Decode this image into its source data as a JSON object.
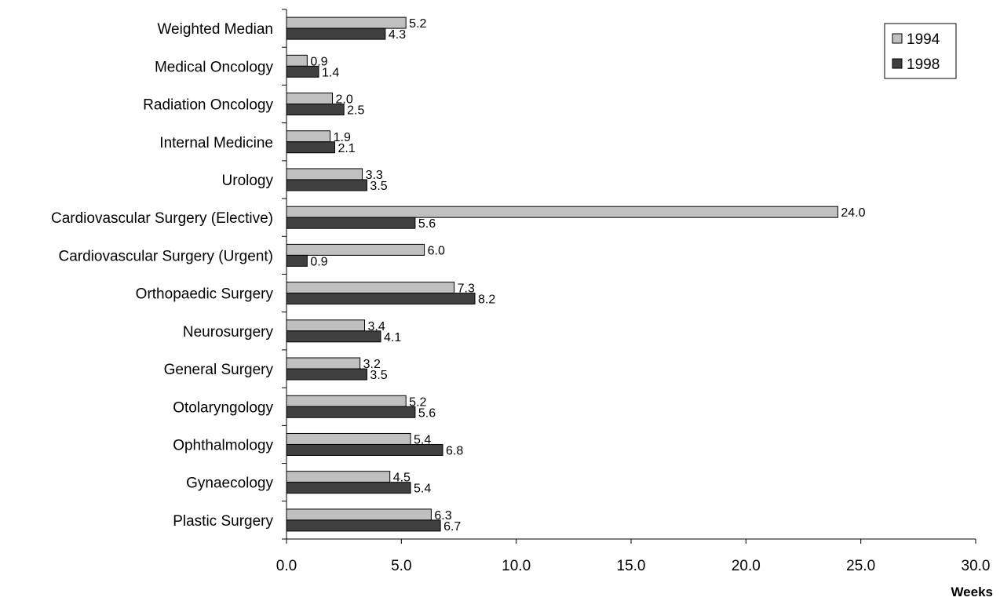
{
  "chart_data": {
    "type": "bar",
    "orientation": "horizontal",
    "categories": [
      "Weighted Median",
      "Medical Oncology",
      "Radiation Oncology",
      "Internal Medicine",
      "Urology",
      "Cardiovascular Surgery (Elective)",
      "Cardiovascular Surgery (Urgent)",
      "Orthopaedic Surgery",
      "Neurosurgery",
      "General Surgery",
      "Otolaryngology",
      "Ophthalmology",
      "Gynaecology",
      "Plastic Surgery"
    ],
    "series": [
      {
        "name": "1994",
        "color": "#c0c0c0",
        "values": [
          5.2,
          0.9,
          2.0,
          1.9,
          3.3,
          24.0,
          6.0,
          7.3,
          3.4,
          3.2,
          5.2,
          5.4,
          4.5,
          6.3
        ]
      },
      {
        "name": "1998",
        "color": "#404040",
        "values": [
          4.3,
          1.4,
          2.5,
          2.1,
          3.5,
          5.6,
          0.9,
          8.2,
          4.1,
          3.5,
          5.6,
          6.8,
          5.4,
          6.7
        ]
      }
    ],
    "xlabel": "Weeks",
    "xlim": [
      0,
      30
    ],
    "xticks": [
      "0.0",
      "5.0",
      "10.0",
      "15.0",
      "20.0",
      "25.0",
      "30.0"
    ],
    "grid": false,
    "legend_position": "top-right"
  }
}
